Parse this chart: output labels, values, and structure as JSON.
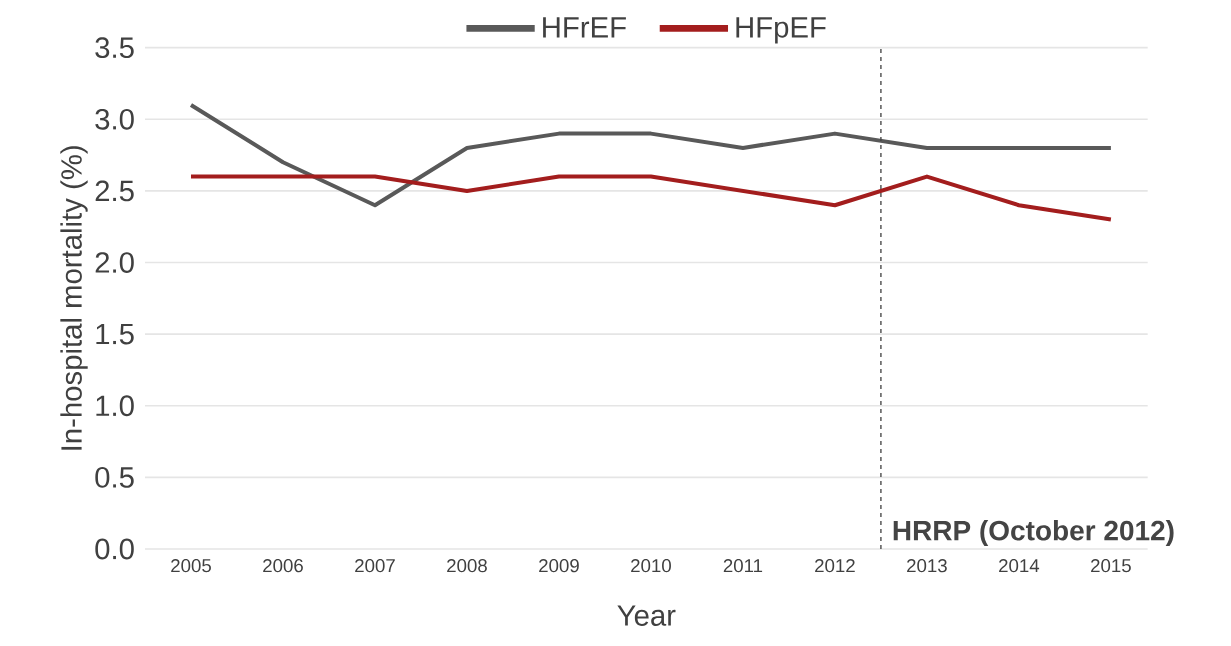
{
  "chart_data": {
    "type": "line",
    "xlabel": "Year",
    "ylabel": "In-hospital mortality (%)",
    "x": [
      2005,
      2006,
      2007,
      2008,
      2009,
      2010,
      2011,
      2012,
      2013,
      2014,
      2015
    ],
    "series": [
      {
        "name": "HFrEF",
        "color": "#595959",
        "values": [
          3.1,
          2.7,
          2.4,
          2.8,
          2.9,
          2.9,
          2.8,
          2.9,
          2.8,
          2.8,
          2.8
        ]
      },
      {
        "name": "HFpEF",
        "color": "#a31d1d",
        "values": [
          2.6,
          2.6,
          2.6,
          2.5,
          2.6,
          2.6,
          2.5,
          2.4,
          2.6,
          2.4,
          2.3
        ]
      }
    ],
    "xlim": [
      2004.5,
      2015.4
    ],
    "xticks": [
      2005,
      2006,
      2007,
      2008,
      2009,
      2010,
      2011,
      2012,
      2013,
      2014,
      2015
    ],
    "ylim": [
      0,
      3.5
    ],
    "yticks": [
      {
        "value": 0,
        "label": "0.0"
      },
      {
        "value": 0.5,
        "label": "0.5"
      },
      {
        "value": 1,
        "label": "1.0"
      },
      {
        "value": 1.5,
        "label": "1.5"
      },
      {
        "value": 2,
        "label": "2.0"
      },
      {
        "value": 2.5,
        "label": "2.5"
      },
      {
        "value": 3,
        "label": "3.0"
      },
      {
        "value": 3.5,
        "label": "3.5"
      }
    ],
    "ref_lines": [
      {
        "axis": "x",
        "value": 2012.5,
        "label": "HRRP (October 2012)",
        "color": "#444444",
        "line_style": "dashed"
      }
    ],
    "grid": "y",
    "legend": "top",
    "marker": "none",
    "line_style": "solid"
  }
}
